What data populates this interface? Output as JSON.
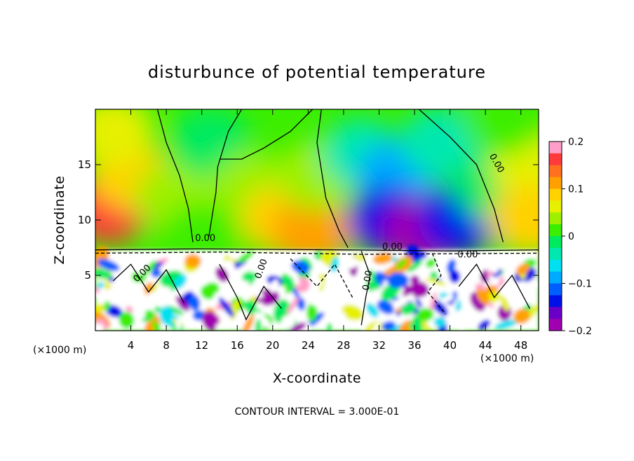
{
  "chart_data": {
    "type": "heatmap",
    "title": "disturbunce of potential temperature",
    "xlabel": "X-coordinate",
    "ylabel": "Z-coordinate",
    "x_unit": "(×1000 m)",
    "y_unit": "(×1000 m)",
    "xlim": [
      0,
      50
    ],
    "ylim": [
      0,
      20
    ],
    "x_ticks": [
      4,
      8,
      12,
      16,
      20,
      24,
      28,
      32,
      36,
      40,
      44,
      48
    ],
    "y_ticks": [
      5,
      10,
      15
    ],
    "colorbar": {
      "min": -0.2,
      "max": 0.2,
      "tick_labels": [
        "0.2",
        "0.1",
        "0",
        "−0.1",
        "−0.2"
      ],
      "tick_values": [
        0.2,
        0.1,
        0,
        -0.1,
        -0.2
      ],
      "colors": [
        "#ff9ec8",
        "#ff3a3a",
        "#ff7020",
        "#ffa000",
        "#ffd200",
        "#e6f000",
        "#9ef000",
        "#3cee00",
        "#00ea60",
        "#00e8b0",
        "#00e0f0",
        "#00aaff",
        "#0060ff",
        "#0010e8",
        "#6a00c8",
        "#a000b0"
      ]
    },
    "annotation": "CONTOUR INTERVAL = 3.000E-01",
    "contour_labels": [
      "0.00",
      "0.00",
      "0.00",
      "0.00",
      "0.00",
      "0.00",
      "0.00"
    ],
    "boundary_layer_top_z": 7.3,
    "blobs": [
      {
        "x": 1.5,
        "z": 11,
        "v": 0.17
      },
      {
        "x": 4,
        "z": 14,
        "v": 0.1
      },
      {
        "x": 2,
        "z": 18,
        "v": 0.07
      },
      {
        "x": 9,
        "z": 12,
        "v": 0.05
      },
      {
        "x": 13,
        "z": 17,
        "v": 0.0
      },
      {
        "x": 18,
        "z": 13,
        "v": 0.04
      },
      {
        "x": 21,
        "z": 10,
        "v": 0.09
      },
      {
        "x": 24.5,
        "z": 9,
        "v": 0.12
      },
      {
        "x": 25,
        "z": 14,
        "v": 0.05
      },
      {
        "x": 30,
        "z": 16,
        "v": -0.03
      },
      {
        "x": 34,
        "z": 14,
        "v": -0.08
      },
      {
        "x": 33,
        "z": 10,
        "v": -0.14
      },
      {
        "x": 37,
        "z": 9,
        "v": -0.19
      },
      {
        "x": 41,
        "z": 10,
        "v": -0.15
      },
      {
        "x": 39,
        "z": 17,
        "v": -0.04
      },
      {
        "x": 45,
        "z": 13,
        "v": -0.02
      },
      {
        "x": 49,
        "z": 15,
        "v": 0.06
      },
      {
        "x": 49,
        "z": 10,
        "v": 0.09
      },
      {
        "x": 46,
        "z": 19,
        "v": 0.02
      },
      {
        "x": 12,
        "z": 8.5,
        "v": 0.02
      }
    ]
  }
}
